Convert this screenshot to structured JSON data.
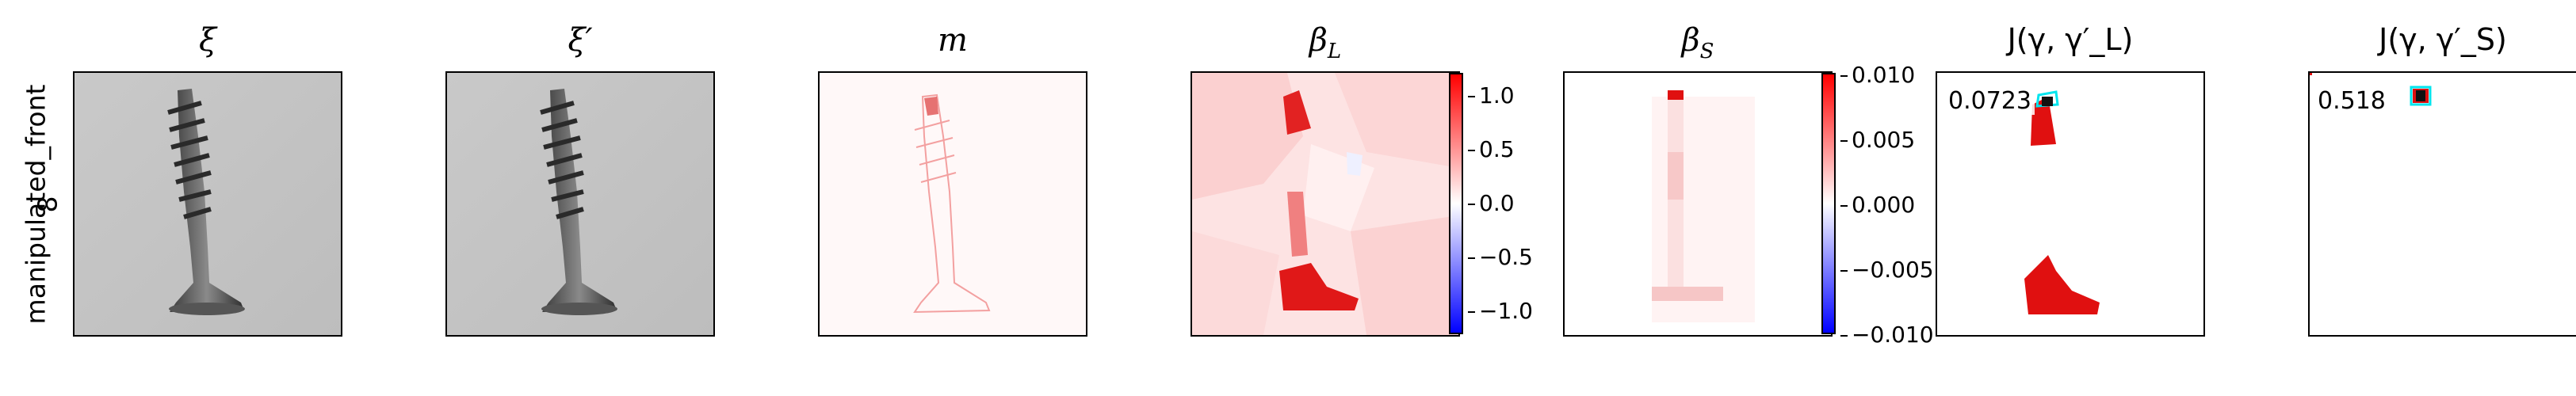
{
  "row_label_line1": "manipulated_front",
  "row_label_line2": "8",
  "panels": [
    {
      "title": "ξ"
    },
    {
      "title": "ξ′"
    },
    {
      "title": "m"
    },
    {
      "title": "β_L",
      "title_main": "β",
      "title_sub": "L"
    },
    {
      "title": "β_S",
      "title_main": "β",
      "title_sub": "S"
    },
    {
      "title": "J(γ, γ′_L)",
      "value": "0.0723"
    },
    {
      "title": "J(γ, γ′_S)",
      "value": "0.518"
    }
  ],
  "colorbar_L": {
    "ticks": [
      "1.0",
      "0.5",
      "0.0",
      "−0.5",
      "−1.0"
    ],
    "range": [
      -1.2,
      1.2
    ]
  },
  "colorbar_S": {
    "ticks": [
      "0.010",
      "0.005",
      "0.000",
      "−0.005",
      "−0.010"
    ],
    "range": [
      -0.01,
      0.01
    ]
  },
  "colors": {
    "positive": "#ff0000",
    "negative": "#0000ff",
    "neutral": "#ffffff",
    "contour": "#00e5ee"
  }
}
